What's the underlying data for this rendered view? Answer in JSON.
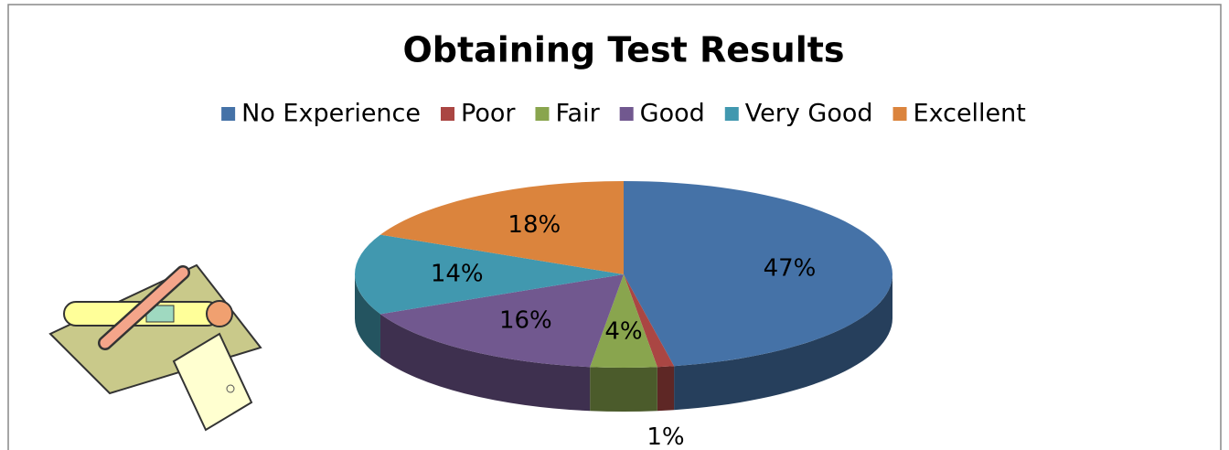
{
  "chart_data": {
    "type": "pie",
    "title": "Obtaining Test Results",
    "categories": [
      "No Experience",
      "Poor",
      "Fair",
      "Good",
      "Very Good",
      "Excellent"
    ],
    "values": [
      47,
      1,
      4,
      16,
      14,
      18
    ],
    "value_labels": [
      "47%",
      "1%",
      "4%",
      "16%",
      "14%",
      "18%"
    ],
    "colors": [
      "#4572a7",
      "#aa4643",
      "#89a54e",
      "#71588f",
      "#4198af",
      "#db843d"
    ],
    "legend": "top"
  }
}
